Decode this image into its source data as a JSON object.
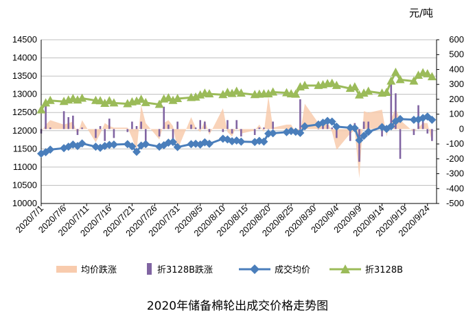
{
  "chart_data": {
    "type": "line",
    "title": "2020年储备棉轮出成交价格走势图",
    "y2label": "元/吨",
    "xlabel": "",
    "ylabel": "",
    "ylim": [
      10000,
      14500
    ],
    "y2lim": [
      -500,
      600
    ],
    "y_ticks": [
      10000,
      10500,
      11000,
      11500,
      12000,
      12500,
      13000,
      13500,
      14000,
      14500
    ],
    "y2_ticks": [
      -500,
      -400,
      -300,
      -200,
      -100,
      0,
      100,
      200,
      300,
      400,
      500,
      600
    ],
    "x_range": [
      "2020-07-01",
      "2020-09-26"
    ],
    "x_tick_labels": [
      "2020/7/1",
      "2020/7/6",
      "2020/7/11",
      "2020/7/16",
      "2020/7/21",
      "2020/7/26",
      "2020/7/31",
      "2020/8/5",
      "2020/8/10",
      "2020/8/15",
      "2020/8/20",
      "2020/8/25",
      "2020/8/30",
      "2020/9/4",
      "2020/9/9",
      "2020/9/14",
      "2020/9/19",
      "2020/9/24"
    ],
    "grid": "horizontal",
    "legend_position": "bottom",
    "legend": {
      "avg_change": "均价跌涨",
      "b3128_change": "折3128B跌涨",
      "avg_price": "成交均价",
      "b3128": "折3128B"
    },
    "colors": {
      "avg_change": "#f8cbad",
      "b3128_change": "#8064a2",
      "avg_price": "#4a7ebb",
      "b3128": "#9bbb59",
      "grid": "#bfbfbf",
      "axis": "#000000"
    },
    "dates": [
      "2020-07-01",
      "2020-07-02",
      "2020-07-03",
      "2020-07-06",
      "2020-07-07",
      "2020-07-08",
      "2020-07-09",
      "2020-07-10",
      "2020-07-13",
      "2020-07-14",
      "2020-07-15",
      "2020-07-16",
      "2020-07-17",
      "2020-07-20",
      "2020-07-21",
      "2020-07-22",
      "2020-07-23",
      "2020-07-24",
      "2020-07-27",
      "2020-07-28",
      "2020-07-29",
      "2020-07-30",
      "2020-07-31",
      "2020-08-03",
      "2020-08-04",
      "2020-08-05",
      "2020-08-06",
      "2020-08-07",
      "2020-08-10",
      "2020-08-11",
      "2020-08-12",
      "2020-08-13",
      "2020-08-14",
      "2020-08-17",
      "2020-08-18",
      "2020-08-19",
      "2020-08-20",
      "2020-08-21",
      "2020-08-24",
      "2020-08-25",
      "2020-08-26",
      "2020-08-27",
      "2020-08-28",
      "2020-08-31",
      "2020-09-01",
      "2020-09-02",
      "2020-09-03",
      "2020-09-04",
      "2020-09-07",
      "2020-09-08",
      "2020-09-09",
      "2020-09-10",
      "2020-09-11",
      "2020-09-14",
      "2020-09-15",
      "2020-09-16",
      "2020-09-17",
      "2020-09-18",
      "2020-09-21",
      "2020-09-22",
      "2020-09-23",
      "2020-09-24",
      "2020-09-25"
    ],
    "series": [
      {
        "name": "成交均价",
        "axis": "left",
        "kind": "line-diamond",
        "values": [
          11370,
          11410,
          11480,
          11520,
          11560,
          11620,
          11580,
          11650,
          11560,
          11530,
          11580,
          11610,
          11620,
          11630,
          11570,
          11420,
          11590,
          11630,
          11560,
          11600,
          11670,
          11690,
          11550,
          11630,
          11640,
          11620,
          11680,
          11640,
          11780,
          11760,
          11710,
          11730,
          11700,
          11690,
          11720,
          11700,
          11920,
          11930,
          11960,
          11990,
          11970,
          11940,
          12120,
          12170,
          12220,
          12270,
          12250,
          12110,
          12080,
          12070,
          11740,
          11860,
          11970,
          12100,
          12050,
          12120,
          12260,
          12320,
          12300,
          12310,
          12350,
          12390,
          12300
        ]
      },
      {
        "name": "折3128B",
        "axis": "left",
        "kind": "line-triangle",
        "values": [
          12570,
          12760,
          12830,
          12800,
          12840,
          12880,
          12840,
          12890,
          12830,
          12820,
          12750,
          12820,
          12760,
          12740,
          12790,
          12810,
          12860,
          12770,
          12720,
          12870,
          12900,
          12830,
          12880,
          12910,
          12920,
          12980,
          13030,
          13010,
          12990,
          13050,
          13020,
          13080,
          13030,
          12990,
          13000,
          13010,
          13010,
          13060,
          13040,
          13010,
          13000,
          13200,
          13240,
          13240,
          13260,
          13290,
          13300,
          13240,
          13160,
          13200,
          12980,
          13030,
          13080,
          13030,
          13050,
          13360,
          13600,
          13400,
          13360,
          13520,
          13590,
          13560,
          13480
        ]
      },
      {
        "name": "均价跌涨",
        "axis": "right",
        "kind": "area",
        "values": [
          -20,
          30,
          60,
          30,
          40,
          50,
          -40,
          60,
          -90,
          -30,
          40,
          20,
          10,
          10,
          -60,
          -150,
          160,
          40,
          -70,
          40,
          60,
          20,
          -140,
          80,
          10,
          -20,
          60,
          -40,
          140,
          -20,
          -50,
          20,
          -30,
          -10,
          30,
          -20,
          220,
          10,
          30,
          30,
          -20,
          -30,
          170,
          40,
          50,
          50,
          -20,
          -140,
          -30,
          -10,
          -330,
          120,
          110,
          130,
          -50,
          70,
          140,
          60,
          -20,
          10,
          40,
          40,
          -90
        ]
      },
      {
        "name": "折3128B跌涨",
        "axis": "right",
        "kind": "bar",
        "values": [
          -30,
          190,
          10,
          120,
          80,
          90,
          -40,
          10,
          -60,
          20,
          -80,
          70,
          -60,
          -20,
          50,
          20,
          50,
          -90,
          -50,
          150,
          30,
          -70,
          50,
          30,
          10,
          60,
          50,
          -20,
          -20,
          60,
          -30,
          60,
          -50,
          -40,
          10,
          10,
          0,
          50,
          -20,
          -30,
          -10,
          200,
          40,
          0,
          20,
          30,
          10,
          -60,
          -80,
          40,
          -220,
          50,
          50,
          -50,
          20,
          310,
          240,
          -200,
          -40,
          160,
          70,
          -30,
          -80
        ]
      }
    ]
  }
}
